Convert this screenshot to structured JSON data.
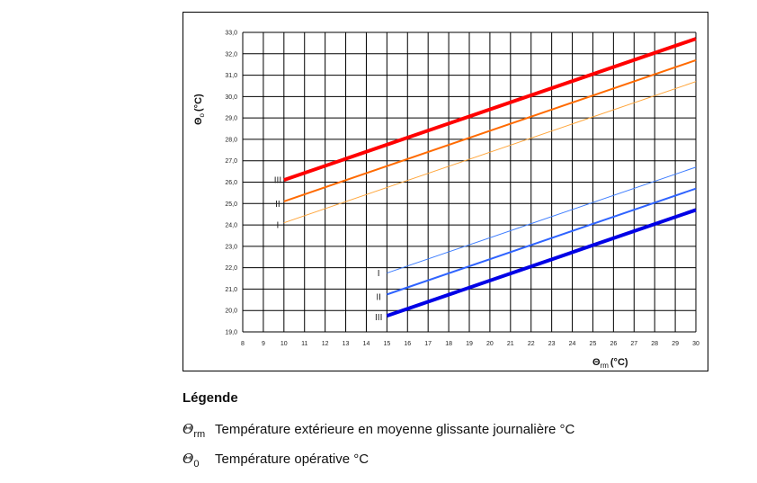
{
  "chart_data": {
    "type": "line",
    "x_ticks": [
      "8",
      "9",
      "10",
      "11",
      "12",
      "13",
      "14",
      "15",
      "16",
      "17",
      "18",
      "19",
      "20",
      "21",
      "22",
      "23",
      "24",
      "25",
      "26",
      "27",
      "28",
      "29",
      "30"
    ],
    "y_ticks": [
      "19,0",
      "20,0",
      "21,0",
      "22,0",
      "23,0",
      "24,0",
      "25,0",
      "26,0",
      "27,0",
      "28,0",
      "29,0",
      "30,0",
      "31,0",
      "32,0",
      "33,0"
    ],
    "xlim": [
      8,
      30
    ],
    "ylim": [
      19,
      33
    ],
    "grid": true,
    "xlabel_symbol": "Θ",
    "xlabel_sub": "rm",
    "xlabel_unit": "(°C)",
    "ylabel_symbol": "Θ",
    "ylabel_sub": "o",
    "ylabel_unit": "(°C)",
    "series": [
      {
        "x": [
          10,
          30
        ],
        "y": [
          26.1,
          32.7
        ],
        "color": "#ff0000",
        "weight": "heavy"
      },
      {
        "x": [
          10,
          30
        ],
        "y": [
          25.1,
          31.7
        ],
        "color": "#ff6a00",
        "weight": "medium"
      },
      {
        "x": [
          10,
          30
        ],
        "y": [
          24.1,
          30.7
        ],
        "color": "#ffa53a",
        "weight": "light"
      },
      {
        "x": [
          15,
          30
        ],
        "y": [
          21.75,
          26.7
        ],
        "color": "#3c7cff",
        "weight": "light"
      },
      {
        "x": [
          15,
          30
        ],
        "y": [
          20.75,
          25.7
        ],
        "color": "#2f63ff",
        "weight": "medium"
      },
      {
        "x": [
          15,
          30
        ],
        "y": [
          19.75,
          24.7
        ],
        "color": "#0000e6",
        "weight": "heavy"
      }
    ],
    "annotations": [
      {
        "text": "III",
        "x": 9.7,
        "y": 26.1
      },
      {
        "text": "II",
        "x": 9.7,
        "y": 25.0
      },
      {
        "text": "I",
        "x": 9.7,
        "y": 24.0
      },
      {
        "text": "I",
        "x": 14.6,
        "y": 21.75
      },
      {
        "text": "II",
        "x": 14.6,
        "y": 20.65
      },
      {
        "text": "III",
        "x": 14.6,
        "y": 19.7
      }
    ]
  },
  "legend": {
    "title": "Légende",
    "items": [
      {
        "symbol": "Θ",
        "sub": "rm",
        "text": "Température extérieure en moyenne glissante journalière °C"
      },
      {
        "symbol": "Θ",
        "sub": "0",
        "text": "Température opérative °C"
      }
    ]
  }
}
